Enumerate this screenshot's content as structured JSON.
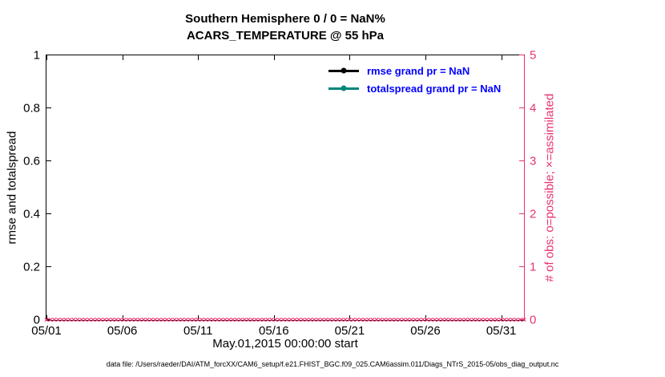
{
  "figure": {
    "title_line1": "Southern Hemisphere 0 / 0 = NaN%",
    "title_line2": "ACARS_TEMPERATURE @ 55 hPa",
    "footer": "data file: /Users/raeder/DAI/ATM_forcXX/CAM6_setup/f.e21.FHIST_BGC.f09_025.CAM6assim.011/Diags_NTrS_2015-05/obs_diag_output.nc"
  },
  "legend": {
    "text_color": "#0000ff",
    "items": [
      {
        "label": "rmse grand pr = NaN",
        "color": "#000000",
        "marker": "filled-circle"
      },
      {
        "label": "totalspread grand pr = NaN",
        "color": "#00857b",
        "marker": "filled-circle"
      }
    ]
  },
  "colors": {
    "background": "#ffffff",
    "left_axis": "#000000",
    "right_axis_pink": "#e8336e",
    "totalspread_teal": "#00857b",
    "legend_text_blue": "#0000ff"
  },
  "chart_data": {
    "type": "line",
    "title": "Southern Hemisphere 0 / 0 = NaN%",
    "subtitle": "ACARS_TEMPERATURE @ 55 hPa",
    "grid": false,
    "legend_position": "inside upper center-right",
    "x_axis": {
      "label": "May.01,2015 00:00:00 start",
      "tick_labels": [
        "05/01",
        "05/06",
        "05/11",
        "05/16",
        "05/21",
        "05/26",
        "05/31"
      ],
      "tick_values": [
        0,
        5,
        10,
        15,
        20,
        25,
        30
      ],
      "range": [
        0,
        31.5
      ],
      "unit": "days since 2015-05-01 00:00:00"
    },
    "y_left": {
      "label": "rmse and totalspread",
      "tick_labels": [
        "0",
        "0.2",
        "0.4",
        "0.6",
        "0.8",
        "1"
      ],
      "tick_values": [
        0,
        0.2,
        0.4,
        0.6,
        0.8,
        1
      ],
      "range": [
        0,
        1
      ]
    },
    "y_right": {
      "label": "# of obs: o=possible; ×=assimilated",
      "tick_labels": [
        "0",
        "1",
        "2",
        "3",
        "4",
        "5"
      ],
      "tick_values": [
        0,
        1,
        2,
        3,
        4,
        5
      ],
      "range": [
        0,
        5
      ]
    },
    "series": [
      {
        "name": "rmse",
        "legend": "rmse grand pr = NaN",
        "axis": "left",
        "color": "#000000",
        "grand_mean": "NaN",
        "values": "all NaN (no curve plotted)"
      },
      {
        "name": "totalspread",
        "legend": "totalspread grand pr = NaN",
        "axis": "left",
        "color": "#00857b",
        "grand_mean": "NaN",
        "values": "all NaN (no curve plotted)"
      },
      {
        "name": "observations possible",
        "marker": "o",
        "axis": "right",
        "color": "#e8336e",
        "value_at_all_times": 0
      },
      {
        "name": "observations assimilated",
        "marker": "×",
        "axis": "right",
        "color": "#e8336e",
        "value_at_all_times": 0
      }
    ],
    "obs_marker_row": {
      "marker": "×",
      "n_times": 124,
      "y_value": 0,
      "color": "#e8336e"
    }
  }
}
